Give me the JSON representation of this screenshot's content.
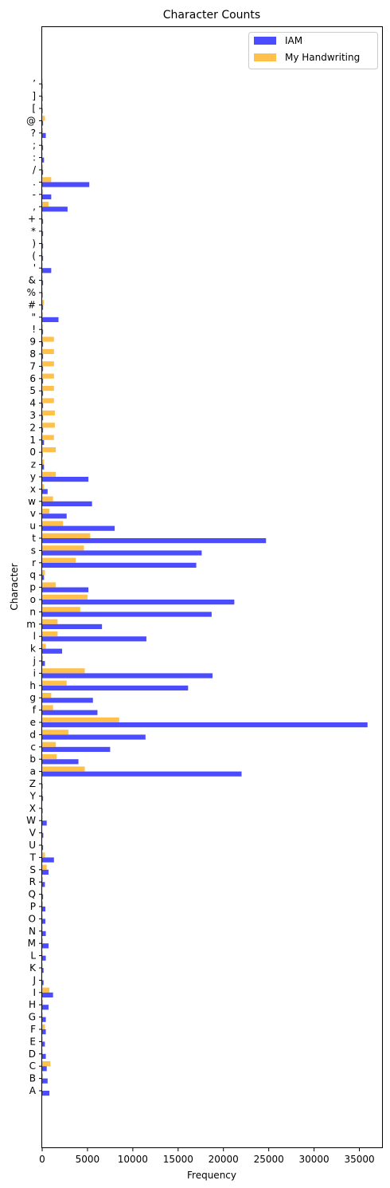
{
  "chart_data": {
    "type": "bar",
    "orientation": "horizontal",
    "title": "Character Counts",
    "xlabel": "Frequency",
    "ylabel": "Character",
    "xlim": [
      0,
      37500
    ],
    "x_ticks": [
      0,
      5000,
      10000,
      15000,
      20000,
      25000,
      30000,
      35000
    ],
    "grid": false,
    "legend_position": "top-right",
    "categories": [
      "A",
      "B",
      "C",
      "D",
      "E",
      "F",
      "G",
      "H",
      "I",
      "J",
      "K",
      "L",
      "M",
      "N",
      "O",
      "P",
      "Q",
      "R",
      "S",
      "T",
      "U",
      "V",
      "W",
      "X",
      "Y",
      "Z",
      "a",
      "b",
      "c",
      "d",
      "e",
      "f",
      "g",
      "h",
      "i",
      "j",
      "k",
      "l",
      "m",
      "n",
      "o",
      "p",
      "q",
      "r",
      "s",
      "t",
      "u",
      "v",
      "w",
      "x",
      "y",
      "z",
      "0",
      "1",
      "2",
      "3",
      "4",
      "5",
      "6",
      "7",
      "8",
      "9",
      "!",
      "\"",
      "#",
      "%",
      "&",
      "'",
      "(",
      ")",
      "*",
      "+",
      ",",
      "-",
      ".",
      "/",
      ":",
      ";",
      "?",
      "@",
      "[",
      "]",
      "’"
    ],
    "series": [
      {
        "name": "IAM",
        "color": "#0000ff",
        "opacity": 0.7,
        "values": [
          800,
          600,
          500,
          400,
          300,
          400,
          400,
          700,
          1200,
          150,
          150,
          400,
          700,
          400,
          350,
          350,
          100,
          300,
          700,
          1300,
          100,
          120,
          500,
          50,
          100,
          50,
          22000,
          4000,
          7500,
          11400,
          35900,
          6100,
          5600,
          16100,
          18800,
          300,
          2200,
          11500,
          6600,
          18700,
          21200,
          5100,
          200,
          17000,
          17600,
          24700,
          8000,
          2700,
          5500,
          600,
          5100,
          200,
          50,
          200,
          100,
          100,
          100,
          100,
          100,
          100,
          100,
          100,
          100,
          1800,
          100,
          50,
          100,
          1000,
          100,
          100,
          100,
          100,
          2800,
          1000,
          5200,
          100,
          200,
          100,
          400,
          100,
          50,
          50,
          50
        ]
      },
      {
        "name": "My Handwriting",
        "color": "#ffa500",
        "opacity": 0.7,
        "values": [
          0,
          100,
          900,
          50,
          50,
          300,
          50,
          100,
          800,
          0,
          50,
          50,
          100,
          50,
          50,
          100,
          0,
          100,
          500,
          300,
          0,
          0,
          50,
          0,
          50,
          0,
          4700,
          1600,
          1500,
          2900,
          8500,
          1200,
          1000,
          2700,
          4700,
          100,
          400,
          1700,
          1700,
          4200,
          5000,
          1500,
          300,
          3700,
          4600,
          5300,
          2300,
          800,
          1200,
          200,
          1500,
          200,
          1500,
          1300,
          1400,
          1400,
          1300,
          1300,
          1300,
          1300,
          1300,
          1300,
          100,
          100,
          200,
          50,
          50,
          50,
          50,
          50,
          50,
          50,
          700,
          100,
          1000,
          100,
          50,
          50,
          100,
          300,
          50,
          50,
          50
        ]
      }
    ]
  }
}
